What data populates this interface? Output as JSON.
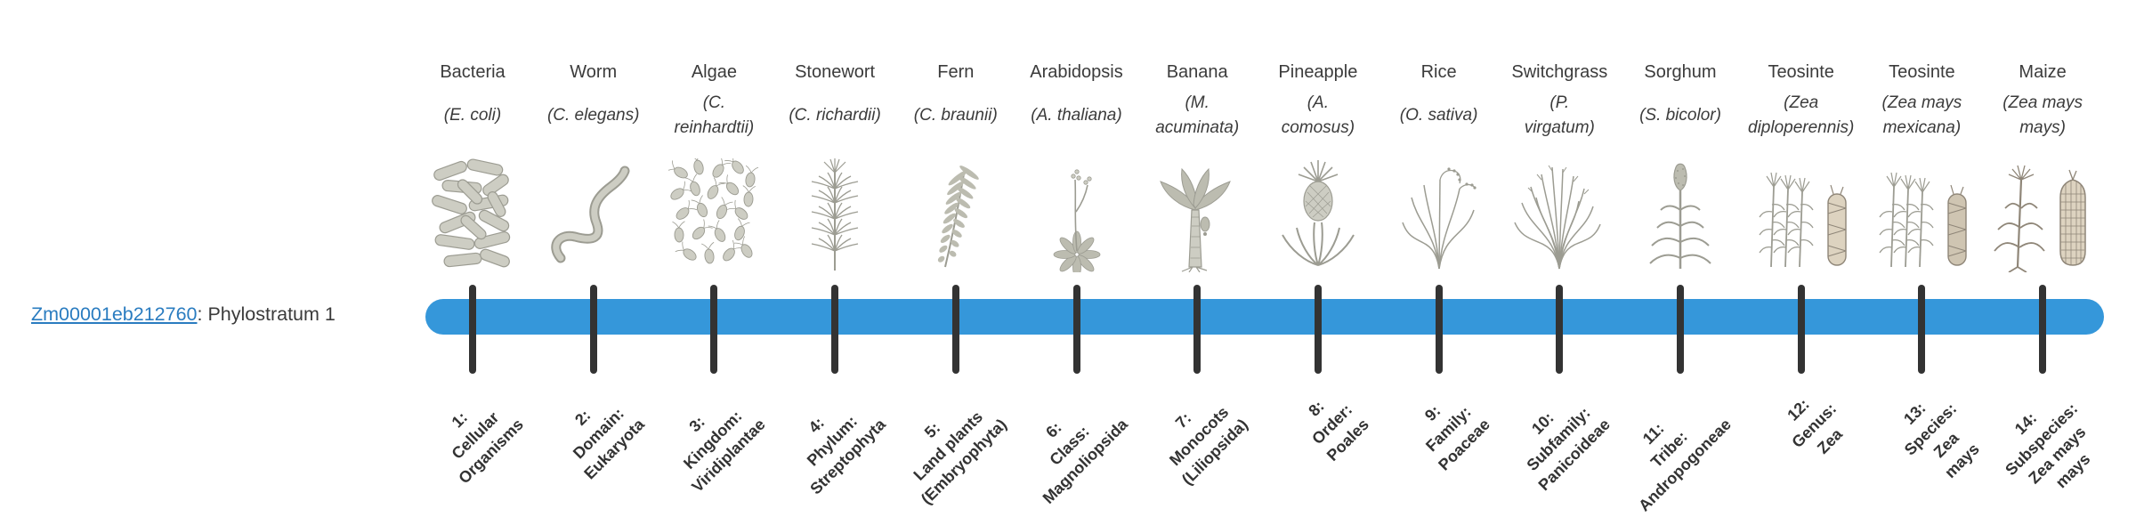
{
  "page": {
    "background": "#ffffff"
  },
  "gene": {
    "id": "Zm00001eb212760",
    "suffix": ": Phylostratum 1"
  },
  "timeline": {
    "bar_color": "#3597da",
    "tick_color": "#333333",
    "link_color": "#2a7cc0",
    "text_color": "#3b3b3b",
    "strata": [
      {
        "num": "1",
        "common": "Bacteria",
        "scientific": "(E. coli)",
        "label": "1:\nCellular\nOrganisms",
        "icon": "bacteria-icon"
      },
      {
        "num": "2",
        "common": "Worm",
        "scientific": "(C. elegans)",
        "label": "2:\nDomain:\nEukaryota",
        "icon": "worm-icon"
      },
      {
        "num": "3",
        "common": "Algae",
        "scientific": "(C.\nreinhardtii)",
        "label": "3:\nKingdom:\nViridiplantae",
        "icon": "algae-icon"
      },
      {
        "num": "4",
        "common": "Stonewort",
        "scientific": "(C. richardii)",
        "label": "4:\nPhylum:\nStreptophyta",
        "icon": "stonewort-icon"
      },
      {
        "num": "5",
        "common": "Fern",
        "scientific": "(C. braunii)",
        "label": "5:\nLand plants\n(Embryophyta)",
        "icon": "fern-icon"
      },
      {
        "num": "6",
        "common": "Arabidopsis",
        "scientific": "(A. thaliana)",
        "label": "6:\nClass:\nMagnoliopsida",
        "icon": "arabidopsis-icon"
      },
      {
        "num": "7",
        "common": "Banana",
        "scientific": "(M.\nacuminata)",
        "label": "7:\nMonocots\n(Liliopsida)",
        "icon": "banana-icon"
      },
      {
        "num": "8",
        "common": "Pineapple",
        "scientific": "(A.\ncomosus)",
        "label": "8:\nOrder:\nPoales",
        "icon": "pineapple-icon"
      },
      {
        "num": "9",
        "common": "Rice",
        "scientific": "(O. sativa)",
        "label": "9:\nFamily:\nPoaceae",
        "icon": "rice-icon"
      },
      {
        "num": "10",
        "common": "Switchgrass",
        "scientific": "(P.\nvirgatum)",
        "label": "10:\nSubfamily:\nPanicoideae",
        "icon": "switchgrass-icon"
      },
      {
        "num": "11",
        "common": "Sorghum",
        "scientific": "(S. bicolor)",
        "label": "11:\nTribe:\nAndropogoneae",
        "icon": "sorghum-icon"
      },
      {
        "num": "12",
        "common": "Teosinte",
        "scientific": "(Zea\ndiploperennis)",
        "label": "12:\nGenus:\nZea",
        "icon": "teosinte-diploperennis-icon"
      },
      {
        "num": "13",
        "common": "Teosinte",
        "scientific": "(Zea mays\nmexicana)",
        "label": "13:\nSpecies:\nZea\nmays",
        "icon": "teosinte-mexicana-icon"
      },
      {
        "num": "14",
        "common": "Maize",
        "scientific": "(Zea mays\nmays)",
        "label": "14:\nSubspecies:\nZea mays\nmays",
        "icon": "maize-icon"
      }
    ]
  }
}
